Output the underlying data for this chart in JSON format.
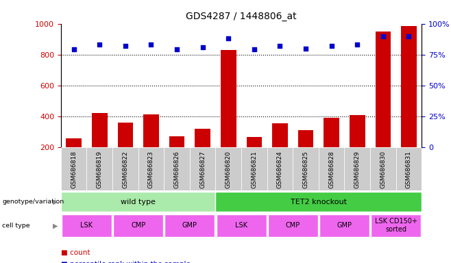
{
  "title": "GDS4287 / 1448806_at",
  "samples": [
    "GSM686818",
    "GSM686819",
    "GSM686822",
    "GSM686823",
    "GSM686826",
    "GSM686827",
    "GSM686820",
    "GSM686821",
    "GSM686824",
    "GSM686825",
    "GSM686828",
    "GSM686829",
    "GSM686830",
    "GSM686831"
  ],
  "counts": [
    260,
    420,
    360,
    415,
    270,
    320,
    830,
    265,
    355,
    310,
    390,
    410,
    950,
    985
  ],
  "percentiles": [
    79,
    83,
    82,
    83,
    79,
    81,
    88,
    79,
    82,
    80,
    82,
    83,
    90,
    90
  ],
  "ylim_left": [
    200,
    1000
  ],
  "ylim_right": [
    0,
    100
  ],
  "yticks_left": [
    200,
    400,
    600,
    800,
    1000
  ],
  "yticks_right": [
    0,
    25,
    50,
    75,
    100
  ],
  "grid_values": [
    400,
    600,
    800
  ],
  "bar_color": "#cc0000",
  "dot_color": "#0000cc",
  "genotype_groups": [
    {
      "label": "wild type",
      "start": 0,
      "end": 6,
      "color": "#aaeaaa"
    },
    {
      "label": "TET2 knockout",
      "start": 6,
      "end": 14,
      "color": "#44cc44"
    }
  ],
  "cell_type_groups": [
    {
      "label": "LSK",
      "start": 0,
      "end": 2
    },
    {
      "label": "CMP",
      "start": 2,
      "end": 4
    },
    {
      "label": "GMP",
      "start": 4,
      "end": 6
    },
    {
      "label": "LSK",
      "start": 6,
      "end": 8
    },
    {
      "label": "CMP",
      "start": 8,
      "end": 10
    },
    {
      "label": "GMP",
      "start": 10,
      "end": 12
    },
    {
      "label": "LSK CD150+\nsorted",
      "start": 12,
      "end": 14
    }
  ],
  "cell_type_color": "#ee66ee",
  "left_color": "#cc0000",
  "right_color": "#0000cc",
  "bg_color": "#ffffff",
  "tick_bg_color": "#cccccc"
}
